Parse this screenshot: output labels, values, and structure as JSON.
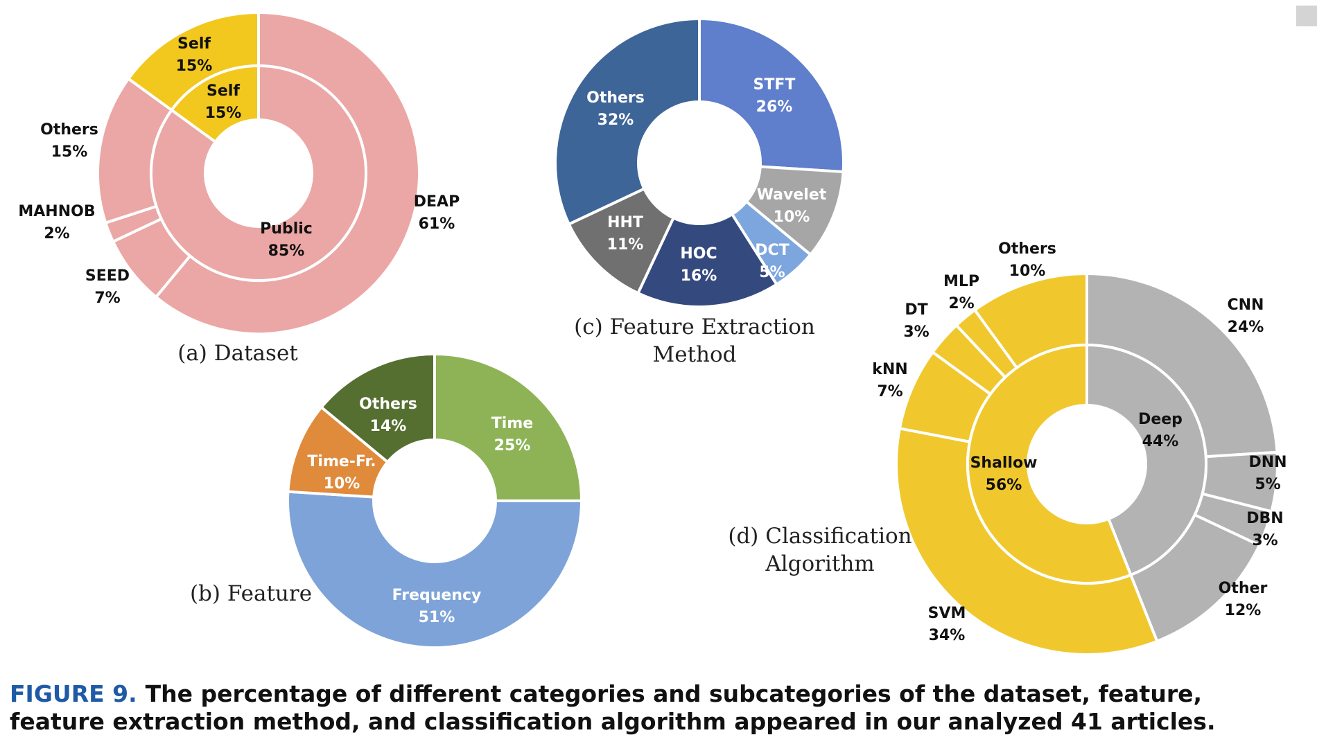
{
  "chart_data": [
    {
      "type": "pie",
      "title": "(a) Dataset",
      "inner_ring": [
        {
          "label": "Public",
          "value": 85,
          "text": "85%",
          "color": "#eba7a5"
        },
        {
          "label": "Self",
          "value": 15,
          "text": "15%",
          "color": "#f2c81e"
        }
      ],
      "outer_ring": [
        {
          "label": "DEAP",
          "value": 61,
          "text": "61%",
          "color": "#eba7a5"
        },
        {
          "label": "SEED",
          "value": 7,
          "text": "7%",
          "color": "#eba7a5"
        },
        {
          "label": "MAHNOB",
          "value": 2,
          "text": "2%",
          "color": "#eba7a5"
        },
        {
          "label": "Others",
          "value": 15,
          "text": "15%",
          "color": "#eba7a5"
        },
        {
          "label": "Self",
          "value": 15,
          "text": "15%",
          "color": "#f2c81e"
        }
      ]
    },
    {
      "type": "pie",
      "title": "(b) Feature",
      "slices": [
        {
          "label": "Time",
          "value": 25,
          "text": "25%",
          "color": "#8db356"
        },
        {
          "label": "Frequency",
          "value": 51,
          "text": "51%",
          "color": "#7ea3d8"
        },
        {
          "label": "Time-Fr.",
          "value": 10,
          "text": "10%",
          "color": "#e08a3c"
        },
        {
          "label": "Others",
          "value": 14,
          "text": "14%",
          "color": "#556f31"
        }
      ]
    },
    {
      "type": "pie",
      "title_lines": [
        "(c) Feature Extraction",
        "Method"
      ],
      "slices": [
        {
          "label": "STFT",
          "value": 26,
          "text": "26%",
          "color": "#5f7ecc"
        },
        {
          "label": "Wavelet",
          "value": 10,
          "text": "10%",
          "color": "#a6a6a6"
        },
        {
          "label": "DCT",
          "value": 5,
          "text": "5%",
          "color": "#7ea6de"
        },
        {
          "label": "HOC",
          "value": 16,
          "text": "16%",
          "color": "#34497e"
        },
        {
          "label": "HHT",
          "value": 11,
          "text": "11%",
          "color": "#707070"
        },
        {
          "label": "Others",
          "value": 32,
          "text": "32%",
          "color": "#3e6598"
        }
      ]
    },
    {
      "type": "pie",
      "title_lines": [
        "(d) Classification",
        "Algorithm"
      ],
      "inner_ring": [
        {
          "label": "Deep",
          "value": 44,
          "text": "44%",
          "color": "#b3b3b3"
        },
        {
          "label": "Shallow",
          "value": 56,
          "text": "56%",
          "color": "#f0c82e"
        }
      ],
      "outer_ring": [
        {
          "label": "CNN",
          "value": 24,
          "text": "24%",
          "color": "#b3b3b3"
        },
        {
          "label": "DNN",
          "value": 5,
          "text": "5%",
          "color": "#b3b3b3"
        },
        {
          "label": "DBN",
          "value": 3,
          "text": "3%",
          "color": "#b3b3b3"
        },
        {
          "label": "Other",
          "value": 12,
          "text": "12%",
          "color": "#b3b3b3"
        },
        {
          "label": "SVM",
          "value": 34,
          "text": "34%",
          "color": "#f0c82e"
        },
        {
          "label": "kNN",
          "value": 7,
          "text": "7%",
          "color": "#f0c82e"
        },
        {
          "label": "DT",
          "value": 3,
          "text": "3%",
          "color": "#f0c82e"
        },
        {
          "label": "MLP",
          "value": 2,
          "text": "2%",
          "color": "#f0c82e"
        },
        {
          "label": "Others",
          "value": 10,
          "text": "10%",
          "color": "#f0c82e"
        }
      ]
    }
  ],
  "caption": {
    "label": "FIGURE 9.",
    "text": "The percentage of different categories and subcategories of the dataset, feature, feature extraction method, and classification algorithm appeared in our analyzed 41 articles."
  }
}
